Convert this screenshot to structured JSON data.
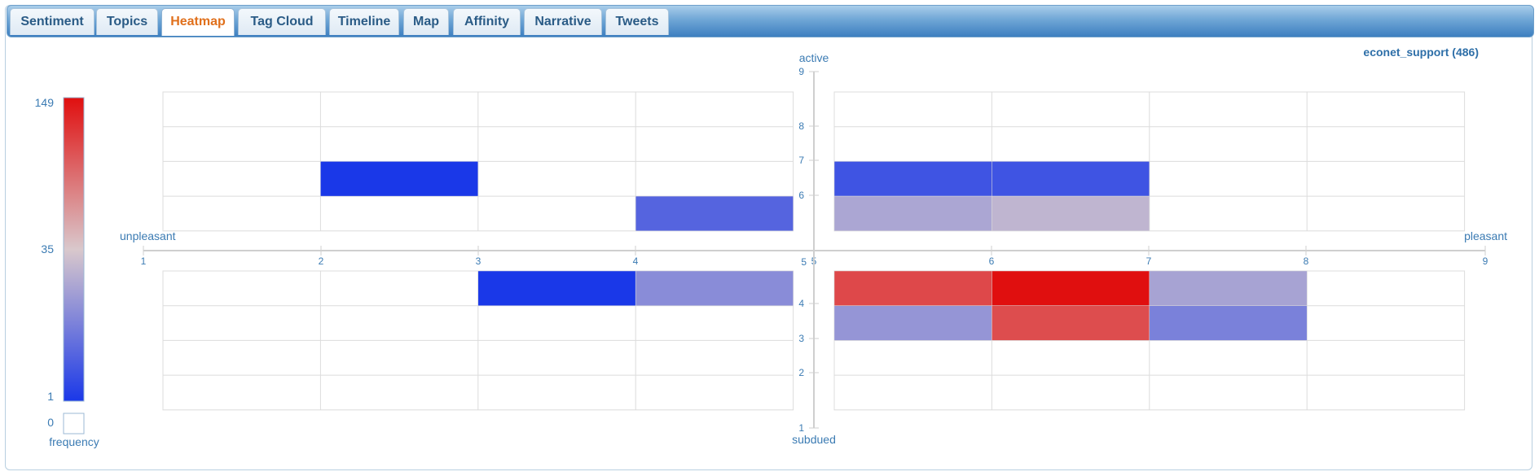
{
  "tabs": [
    {
      "label": "Sentiment",
      "active": false
    },
    {
      "label": "Topics",
      "active": false
    },
    {
      "label": "Heatmap",
      "active": true
    },
    {
      "label": "Tag Cloud",
      "active": false
    },
    {
      "label": "Timeline",
      "active": false
    },
    {
      "label": "Map",
      "active": false
    },
    {
      "label": "Affinity",
      "active": false
    },
    {
      "label": "Narrative",
      "active": false
    },
    {
      "label": "Tweets",
      "active": false
    }
  ],
  "dataset": {
    "name": "econet_support",
    "count": "(486)",
    "display": "econet_support  (486)"
  },
  "legend": {
    "max_label": "149",
    "mid_label": "35",
    "min_label": "1",
    "zero_label": "0",
    "title": "frequency",
    "colors": {
      "high": "#e00f0f",
      "mid": "#d8c8cc",
      "low": "#1a38e8"
    }
  },
  "chart_data": {
    "type": "heatmap",
    "xlabel_left": "unpleasant",
    "xlabel_right": "pleasant",
    "ylabel_top": "active",
    "ylabel_bottom": "subdued",
    "x_ticks": [
      "1",
      "2",
      "3",
      "4",
      "5",
      "6",
      "7",
      "8",
      "9"
    ],
    "y_ticks": [
      "1",
      "2",
      "3",
      "4",
      "5",
      "6",
      "7",
      "8",
      "9"
    ],
    "x_range": [
      1,
      9
    ],
    "y_range": [
      1,
      9
    ],
    "grid": true,
    "cells": [
      {
        "x": 2,
        "y": 6.5,
        "value": 1
      },
      {
        "x": 4,
        "y": 5.5,
        "value": 3
      },
      {
        "x": 5,
        "y": 6.5,
        "value": 2
      },
      {
        "x": 6,
        "y": 6.5,
        "value": 2
      },
      {
        "x": 5,
        "y": 5.5,
        "value": 15
      },
      {
        "x": 6,
        "y": 5.5,
        "value": 22
      },
      {
        "x": 3,
        "y": 4.5,
        "value": 1
      },
      {
        "x": 4,
        "y": 4.5,
        "value": 8
      },
      {
        "x": 5,
        "y": 4.5,
        "value": 95
      },
      {
        "x": 6,
        "y": 4.5,
        "value": 149
      },
      {
        "x": 7,
        "y": 4.5,
        "value": 14
      },
      {
        "x": 5,
        "y": 3.5,
        "value": 10
      },
      {
        "x": 6,
        "y": 3.5,
        "value": 92
      },
      {
        "x": 7,
        "y": 3.5,
        "value": 6
      }
    ]
  }
}
